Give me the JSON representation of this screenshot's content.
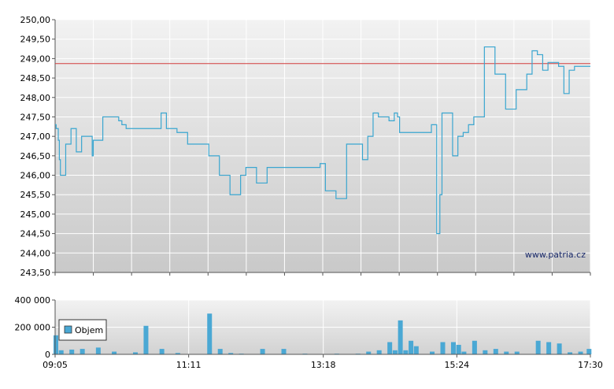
{
  "colors": {
    "price_line": "#3aa6d0",
    "reference_line": "#d23c3c",
    "volume_bar": "#4aa8d4",
    "grid": "#ffffff",
    "plot_bg_top": "#f2f2f2",
    "plot_bg_bottom": "#c9c9c9"
  },
  "watermark": "www.patria.cz",
  "chart_data": [
    {
      "type": "line",
      "title": "",
      "xlabel": "",
      "ylabel": "",
      "ylim": [
        243.5,
        250.0
      ],
      "y_ticks": [
        "250,00",
        "249,50",
        "249,00",
        "248,50",
        "248,00",
        "247,50",
        "247,00",
        "246,50",
        "246,00",
        "245,50",
        "245,00",
        "244,50",
        "244,00",
        "243,50"
      ],
      "grid": true,
      "reference_line": 248.87,
      "series": [
        {
          "x": [
            "09:05",
            "09:06",
            "09:08",
            "09:09",
            "09:10",
            "09:11",
            "09:12",
            "09:15",
            "09:20",
            "09:21",
            "09:25",
            "09:26",
            "09:30",
            "09:40",
            "09:41",
            "09:45",
            "09:50",
            "10:00",
            "10:05",
            "10:08",
            "10:10",
            "10:12",
            "10:20",
            "10:30",
            "10:31",
            "10:35",
            "10:45",
            "10:50",
            "11:00",
            "11:10",
            "11:30",
            "11:40",
            "11:45",
            "11:50",
            "12:00",
            "12:05",
            "12:15",
            "12:20",
            "12:25",
            "12:30",
            "12:40",
            "12:50",
            "12:55",
            "13:00",
            "13:05",
            "13:10",
            "13:15",
            "13:20",
            "13:30",
            "13:40",
            "13:55",
            "14:00",
            "14:05",
            "14:10",
            "14:20",
            "14:25",
            "14:28",
            "14:30",
            "14:35",
            "14:40",
            "14:45",
            "14:55",
            "15:00",
            "15:05",
            "15:08",
            "15:10",
            "15:15",
            "15:20",
            "15:22",
            "15:24",
            "15:25",
            "15:30",
            "15:35",
            "15:40",
            "15:45",
            "15:50",
            "16:00",
            "16:10",
            "16:20",
            "16:30",
            "16:35",
            "16:40",
            "16:45",
            "16:50",
            "17:00",
            "17:05",
            "17:10",
            "17:15",
            "17:20",
            "17:25",
            "17:30"
          ],
          "y": [
            247.3,
            247.2,
            246.9,
            246.4,
            246.0,
            246.0,
            246.0,
            246.8,
            247.2,
            247.2,
            246.6,
            246.6,
            247.0,
            246.5,
            246.9,
            246.9,
            247.5,
            247.5,
            247.4,
            247.3,
            247.3,
            247.2,
            247.2,
            247.2,
            247.2,
            247.2,
            247.6,
            247.2,
            247.1,
            246.8,
            246.5,
            246.0,
            246.0,
            245.5,
            246.0,
            246.2,
            245.8,
            245.8,
            246.2,
            246.2,
            246.2,
            246.2,
            246.2,
            246.2,
            246.2,
            246.2,
            246.3,
            245.6,
            245.4,
            246.8,
            246.4,
            247.0,
            247.6,
            247.5,
            247.4,
            247.6,
            247.5,
            247.1,
            247.1,
            247.1,
            247.1,
            247.1,
            247.3,
            244.5,
            245.5,
            247.6,
            247.6,
            246.5,
            246.5,
            246.5,
            247.0,
            247.1,
            247.3,
            247.5,
            247.5,
            249.3,
            248.6,
            247.7,
            248.2,
            248.6,
            249.2,
            249.1,
            248.7,
            248.9,
            248.8,
            248.1,
            248.7,
            248.8,
            248.8,
            248.8,
            248.8
          ]
        }
      ]
    },
    {
      "type": "bar",
      "title": "",
      "xlabel": "",
      "ylabel": "",
      "ylim": [
        0,
        400000
      ],
      "y_ticks": [
        "400 000",
        "200 000",
        "0"
      ],
      "x_ticks": [
        "09:05",
        "11:11",
        "13:18",
        "15:24",
        "17:30"
      ],
      "legend": {
        "entry": "Objem",
        "placement": "left"
      },
      "series": [
        {
          "name": "Objem",
          "x": [
            "09:05",
            "09:10",
            "09:20",
            "09:30",
            "09:45",
            "10:00",
            "10:20",
            "10:30",
            "10:45",
            "11:00",
            "11:30",
            "11:40",
            "11:50",
            "12:00",
            "12:20",
            "12:40",
            "13:00",
            "13:30",
            "13:50",
            "14:00",
            "14:10",
            "14:20",
            "14:25",
            "14:30",
            "14:35",
            "14:40",
            "14:45",
            "15:00",
            "15:10",
            "15:20",
            "15:25",
            "15:30",
            "15:40",
            "15:50",
            "16:00",
            "16:10",
            "16:20",
            "16:40",
            "16:50",
            "17:00",
            "17:10",
            "17:20",
            "17:28"
          ],
          "values": [
            140000,
            30000,
            35000,
            40000,
            50000,
            20000,
            15000,
            210000,
            40000,
            10000,
            300000,
            40000,
            10000,
            5000,
            40000,
            40000,
            5000,
            5000,
            5000,
            20000,
            30000,
            90000,
            30000,
            250000,
            30000,
            100000,
            60000,
            20000,
            90000,
            90000,
            70000,
            20000,
            100000,
            30000,
            40000,
            20000,
            20000,
            100000,
            90000,
            80000,
            15000,
            20000,
            40000
          ]
        }
      ]
    }
  ]
}
